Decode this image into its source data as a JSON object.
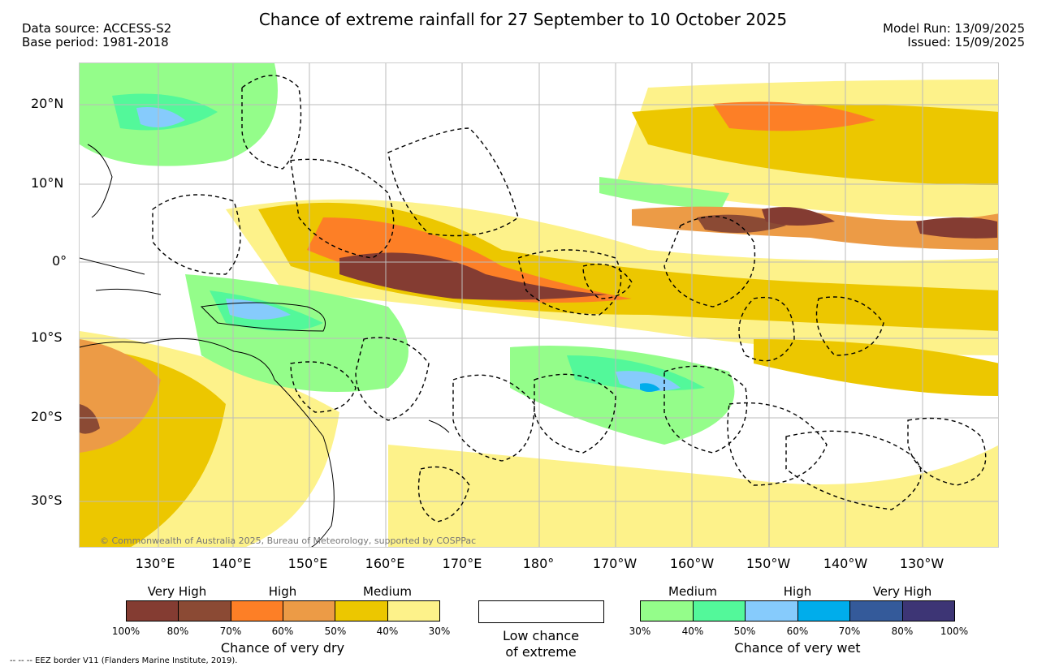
{
  "header": {
    "title": "Chance of extreme rainfall for 27 September to 10 October 2025",
    "data_source": "Data source: ACCESS-S2",
    "base_period": "Base period: 1981-2018",
    "model_run": "Model Run: 13/09/2025",
    "issued": "Issued: 15/09/2025"
  },
  "axes": {
    "lat_labels": [
      "20°N",
      "10°N",
      "0°",
      "10°S",
      "20°S",
      "30°S"
    ],
    "lon_labels": [
      "130°E",
      "140°E",
      "150°E",
      "160°E",
      "170°E",
      "180°",
      "170°W",
      "160°W",
      "150°W",
      "140°W",
      "130°W"
    ]
  },
  "map": {
    "credit": "© Commonwealth of Australia 2025, Bureau of Meteorology, supported by COSPPac"
  },
  "legend": {
    "dry": {
      "levels": [
        "Very High",
        "High",
        "Medium"
      ],
      "ticks": [
        "100%",
        "80%",
        "70%",
        "60%",
        "50%",
        "40%",
        "30%"
      ],
      "colors": [
        "#843c32",
        "#8b4a34",
        "#fd7f26",
        "#ec9b46",
        "#ecc700",
        "#fdf28a"
      ],
      "title": "Chance of very dry"
    },
    "low": {
      "line1": "Low chance",
      "line2": "of extreme"
    },
    "wet": {
      "levels": [
        "Medium",
        "High",
        "Very High"
      ],
      "ticks": [
        "30%",
        "40%",
        "50%",
        "60%",
        "70%",
        "80%",
        "100%"
      ],
      "colors": [
        "#94fd8a",
        "#53f89a",
        "#86cbfc",
        "#00adeb",
        "#345a9a",
        "#3d3575"
      ],
      "title": "Chance of very wet"
    }
  },
  "footer": {
    "text": "--  --  -- EEZ border V11 (Flanders Marine Institute, 2019)."
  }
}
